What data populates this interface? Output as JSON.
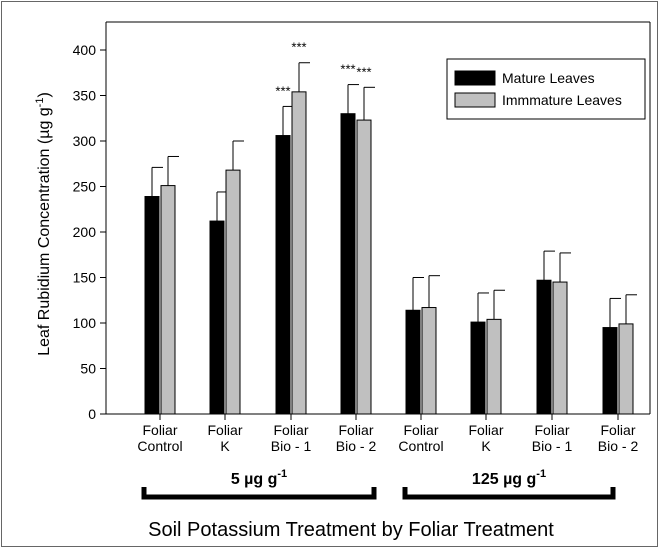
{
  "chart_data": {
    "type": "bar",
    "title": "",
    "xlabel": "Soil Potassium Treatment by Foliar Treatment",
    "ylabel_main": "Leaf Rubidium Concentration (µg g",
    "ylabel_sup": "-1",
    "ylabel_end": ")",
    "ylim": [
      0,
      400
    ],
    "yticks": [
      0,
      50,
      100,
      150,
      200,
      250,
      300,
      350,
      400
    ],
    "grid": false,
    "legend_position": "top-right",
    "categories": [
      [
        "Foliar",
        "Control"
      ],
      [
        "Foliar",
        "K"
      ],
      [
        "Foliar",
        "Bio - 1"
      ],
      [
        "Foliar",
        "Bio - 2"
      ],
      [
        "Foliar",
        "Control"
      ],
      [
        "Foliar",
        "K"
      ],
      [
        "Foliar",
        "Bio - 1"
      ],
      [
        "Foliar",
        "Bio - 2"
      ]
    ],
    "series": [
      {
        "name": "Mature Leaves",
        "color": "#000000",
        "values": [
          239,
          212,
          306,
          330,
          114,
          101,
          147,
          95
        ],
        "errors": [
          32,
          32,
          32,
          32,
          36,
          32,
          32,
          32
        ],
        "annotations": [
          "",
          "",
          "***",
          "***",
          "",
          "",
          "",
          ""
        ]
      },
      {
        "name": "Immmature Leaves",
        "color": "#c0c0c0",
        "values": [
          251,
          268,
          354,
          323,
          117,
          104,
          145,
          99
        ],
        "errors": [
          32,
          32,
          32,
          36,
          35,
          32,
          32,
          32
        ],
        "annotations": [
          "",
          "",
          "***",
          "***",
          "",
          "",
          "",
          ""
        ]
      }
    ],
    "groups": [
      {
        "label_main": "5 µg g",
        "label_sup": "-1",
        "start_category": 0,
        "end_category": 3
      },
      {
        "label_main": "125 µg g",
        "label_sup": "-1",
        "start_category": 4,
        "end_category": 7
      }
    ]
  }
}
